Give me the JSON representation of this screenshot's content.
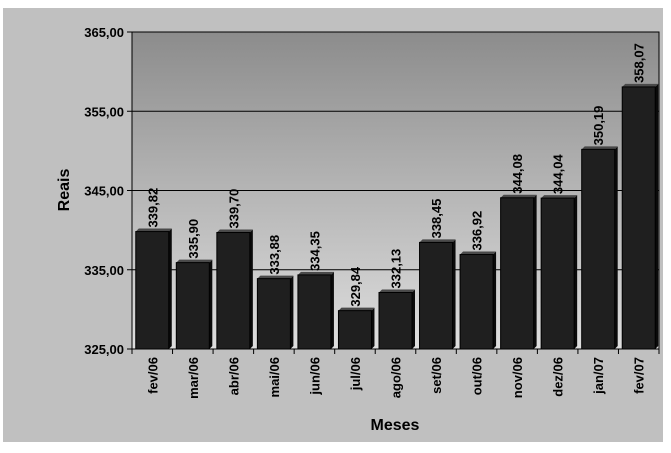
{
  "chart_data": {
    "type": "bar",
    "title": "",
    "xlabel": "Meses",
    "ylabel": "Reais",
    "ylim": [
      325,
      365
    ],
    "yticks": [
      "325,00",
      "335,00",
      "345,00",
      "355,00",
      "365,00"
    ],
    "ytick_values": [
      325,
      335,
      345,
      355,
      365
    ],
    "categories": [
      "fev/06",
      "mar/06",
      "abr/06",
      "mai/06",
      "jun/06",
      "jul/06",
      "ago/06",
      "set/06",
      "out/06",
      "nov/06",
      "dez/06",
      "jan/07",
      "fev/07"
    ],
    "values": [
      339.82,
      335.9,
      339.7,
      333.88,
      334.35,
      329.84,
      332.13,
      338.45,
      336.92,
      344.08,
      344.04,
      350.19,
      358.07
    ],
    "value_labels": [
      "339,82",
      "335,90",
      "339,70",
      "333,88",
      "334,35",
      "329,84",
      "332,13",
      "338,45",
      "336,92",
      "344,08",
      "344,04",
      "350,19",
      "358,07"
    ],
    "grid": true,
    "legend": "none",
    "colors": {
      "outer_background": "#c0c0c0",
      "plot_gradient_top": "#8c8c8c",
      "plot_gradient_bottom": "#dedede",
      "bar_fill": "#1f1f1f",
      "bar_side": "#0a0a0a",
      "bar_top": "#4a4a4a",
      "grid_line": "#000000"
    }
  }
}
